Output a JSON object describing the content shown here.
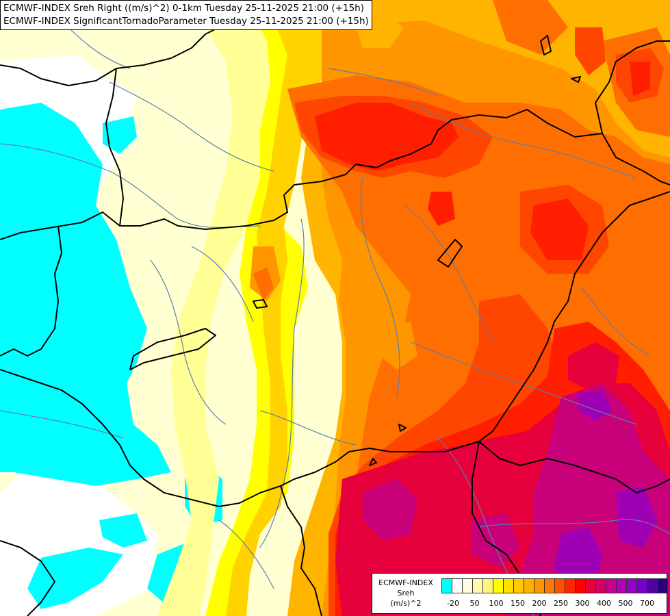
{
  "header": {
    "line1": "ECMWF-INDEX Sreh Right ((m/s)^2) 0-1km Tuesday 25-11-2025 21:00 (+15h)",
    "line2": "ECMWF-INDEX SignificantTornadoParameter Tuesday 25-11-2025 21:00 (+15h)"
  },
  "legend": {
    "source": "ECMWF-INDEX",
    "variable": "Sreh",
    "unit": "(m/s)^2",
    "colors": [
      "#00ffff",
      "#ffffff",
      "#fffde0",
      "#fff8b0",
      "#fff380",
      "#ffff00",
      "#ffe000",
      "#ffc800",
      "#ffb000",
      "#ff9600",
      "#ff7800",
      "#ff5000",
      "#ff2800",
      "#ff0000",
      "#e6003c",
      "#d20064",
      "#c8008c",
      "#b400b4",
      "#9600c8",
      "#7800c8",
      "#5000a0",
      "#280078"
    ],
    "tick_labels": [
      "-20",
      "50",
      "100",
      "150",
      "200",
      "250",
      "300",
      "400",
      "500",
      "700"
    ]
  },
  "map": {
    "palette": {
      "cyan": "#00ffff",
      "pale_yellow": "#ffffd2",
      "light_yellow": "#ffff96",
      "yellow": "#ffff00",
      "gold": "#ffd200",
      "orange_light": "#ffb400",
      "orange": "#ff9600",
      "orange_dark": "#ff6e00",
      "red_orange": "#ff4600",
      "red": "#ff1e00",
      "crimson": "#e6003c",
      "magenta": "#c8007a",
      "purple": "#a000b4",
      "border": "#000000",
      "river": "#5a7fb0"
    }
  }
}
